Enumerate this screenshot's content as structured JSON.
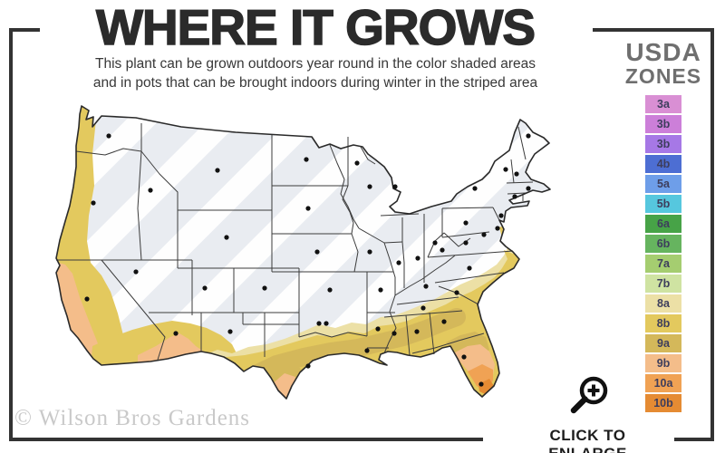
{
  "header": {
    "title": "WHERE IT GROWS",
    "subtitle_line1": "This plant can be grown outdoors year round in the color shaded areas",
    "subtitle_line2": "and in pots that can be brought indoors during winter in the striped area"
  },
  "legend": {
    "title_line1": "USDA",
    "title_line2": "ZONES",
    "zones": [
      {
        "label": "3a",
        "color": "#d98fd4"
      },
      {
        "label": "3b",
        "color": "#cc7fd9"
      },
      {
        "label": "3b",
        "color": "#a678e6"
      },
      {
        "label": "4b",
        "color": "#4d6ed3"
      },
      {
        "label": "5a",
        "color": "#6e9ee9"
      },
      {
        "label": "5b",
        "color": "#56c7de"
      },
      {
        "label": "6a",
        "color": "#47a347"
      },
      {
        "label": "6b",
        "color": "#66b45f"
      },
      {
        "label": "7a",
        "color": "#a5cd70"
      },
      {
        "label": "7b",
        "color": "#cfe3a2"
      },
      {
        "label": "8a",
        "color": "#ece0a6"
      },
      {
        "label": "8b",
        "color": "#e3c95e"
      },
      {
        "label": "9a",
        "color": "#d4b85a"
      },
      {
        "label": "9b",
        "color": "#f4bd8a"
      },
      {
        "label": "10a",
        "color": "#f0a254"
      },
      {
        "label": "10b",
        "color": "#e58b33"
      }
    ]
  },
  "map": {
    "base_color": "#e9ecf1",
    "stripe_color": "#ffffff",
    "outline_color": "#2a2a2a"
  },
  "footer": {
    "watermark": "© Wilson Bros Gardens",
    "enlarge_label": "CLICK TO ENLARGE",
    "magnifier_icon": "magnifying-glass-plus-icon"
  }
}
